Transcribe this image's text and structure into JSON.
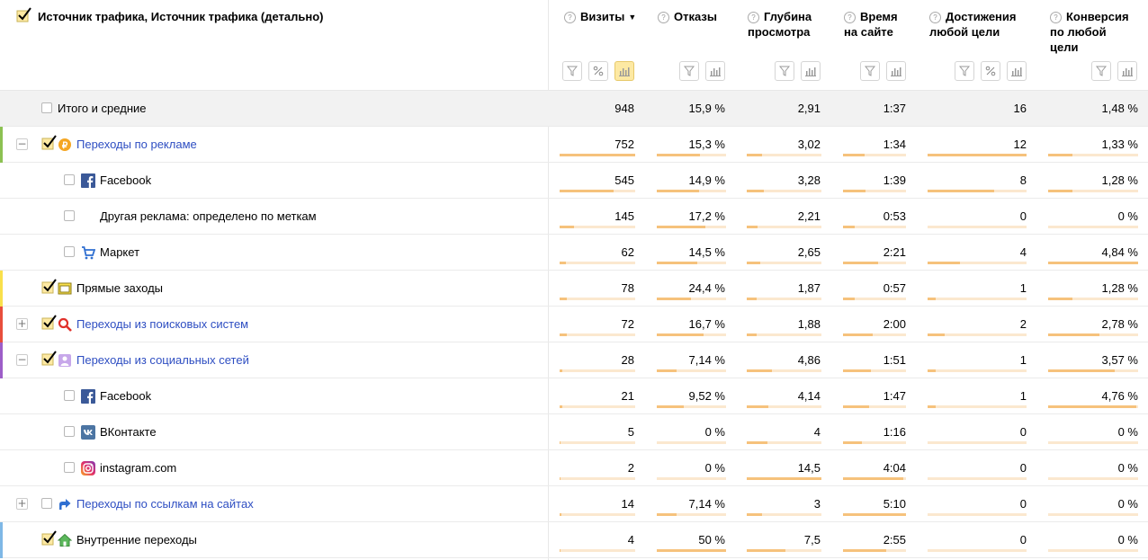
{
  "header": {
    "dimension_title": "Источник трафика, Источник трафика (детально)",
    "metrics": [
      {
        "id": "visits",
        "line1": "Визиты",
        "line2": "",
        "line3": "",
        "sorted": true,
        "buttons": [
          "filter",
          "percent",
          "chart-active"
        ]
      },
      {
        "id": "bounces",
        "line1": "Отказы",
        "line2": "",
        "line3": "",
        "sorted": false,
        "buttons": [
          "filter",
          "chart"
        ]
      },
      {
        "id": "depth",
        "line1": "Глубина",
        "line2": "просмотра",
        "line3": "",
        "sorted": false,
        "buttons": [
          "filter",
          "chart"
        ]
      },
      {
        "id": "time",
        "line1": "Время",
        "line2": "на сайте",
        "line3": "",
        "sorted": false,
        "buttons": [
          "filter",
          "chart"
        ]
      },
      {
        "id": "goals",
        "line1": "Достижения",
        "line2": "любой цели",
        "line3": "",
        "sorted": false,
        "buttons": [
          "filter",
          "percent",
          "chart"
        ]
      },
      {
        "id": "conv",
        "line1": "Конверсия",
        "line2": "по любой",
        "line3": "цели",
        "sorted": false,
        "buttons": [
          "filter",
          "chart"
        ]
      }
    ],
    "sort_arrow": "▼",
    "help_glyph": "?"
  },
  "colors": {
    "accent_yellow": "#fde9a3",
    "link": "#2e4ec2",
    "bar": "#f6c27c",
    "bar_bg": "#fbe8cf"
  },
  "rows": [
    {
      "label": "Итого и средние",
      "level": 0,
      "total": true,
      "checked": false,
      "toggle": "",
      "icon": "",
      "link": false,
      "accent": "",
      "values": [
        "948",
        "15,9 %",
        "2,91",
        "1:37",
        "16",
        "1,48 %"
      ],
      "bars": [
        null,
        null,
        null,
        null,
        null,
        null
      ]
    },
    {
      "label": "Переходы по рекламе",
      "level": 0,
      "checked": true,
      "toggle": "−",
      "icon": "ad-coin-icon",
      "link": true,
      "accent": "#8cc152",
      "values": [
        "752",
        "15,3 %",
        "3,02",
        "1:34",
        "12",
        "1,33 %"
      ],
      "bars": [
        1.0,
        0.62,
        0.21,
        0.34,
        1.0,
        0.27
      ]
    },
    {
      "label": "Facebook",
      "level": 1,
      "checked": false,
      "toggle": "",
      "icon": "facebook-icon",
      "link": false,
      "accent": "",
      "values": [
        "545",
        "14,9 %",
        "3,28",
        "1:39",
        "8",
        "1,28 %"
      ],
      "bars": [
        0.72,
        0.61,
        0.23,
        0.36,
        0.67,
        0.27
      ]
    },
    {
      "label": "Другая реклама: определено по меткам",
      "level": 1,
      "checked": false,
      "toggle": "",
      "icon": "",
      "link": false,
      "accent": "",
      "values": [
        "145",
        "17,2 %",
        "2,21",
        "0:53",
        "0",
        "0 %"
      ],
      "bars": [
        0.19,
        0.7,
        0.15,
        0.19,
        0,
        0
      ]
    },
    {
      "label": "Маркет",
      "level": 1,
      "checked": false,
      "toggle": "",
      "icon": "market-cart-icon",
      "link": false,
      "accent": "",
      "values": [
        "62",
        "14,5 %",
        "2,65",
        "2:21",
        "4",
        "4,84 %"
      ],
      "bars": [
        0.08,
        0.59,
        0.18,
        0.55,
        0.33,
        1.0
      ]
    },
    {
      "label": "Прямые заходы",
      "level": 0,
      "checked": true,
      "toggle": "",
      "icon": "direct-window-icon",
      "link": false,
      "accent": "#f9e04b",
      "values": [
        "78",
        "24,4 %",
        "1,87",
        "0:57",
        "1",
        "1,28 %"
      ],
      "bars": [
        0.1,
        0.49,
        0.13,
        0.19,
        0.08,
        0.27
      ]
    },
    {
      "label": "Переходы из поисковых систем",
      "level": 0,
      "checked": true,
      "toggle": "+",
      "icon": "search-magnifier-icon",
      "link": true,
      "accent": "#e84e3c",
      "values": [
        "72",
        "16,7 %",
        "1,88",
        "2:00",
        "2",
        "2,78 %"
      ],
      "bars": [
        0.1,
        0.68,
        0.13,
        0.47,
        0.17,
        0.57
      ]
    },
    {
      "label": "Переходы из социальных сетей",
      "level": 0,
      "checked": true,
      "toggle": "−",
      "icon": "social-person-icon",
      "link": true,
      "accent": "#9d5ec8",
      "values": [
        "28",
        "7,14 %",
        "4,86",
        "1:51",
        "1",
        "3,57 %"
      ],
      "bars": [
        0.04,
        0.29,
        0.34,
        0.44,
        0.08,
        0.74
      ]
    },
    {
      "label": "Facebook",
      "level": 1,
      "checked": false,
      "toggle": "",
      "icon": "facebook-icon",
      "link": false,
      "accent": "",
      "values": [
        "21",
        "9,52 %",
        "4,14",
        "1:47",
        "1",
        "4,76 %"
      ],
      "bars": [
        0.03,
        0.39,
        0.29,
        0.42,
        0.08,
        0.98
      ]
    },
    {
      "label": "ВКонтакте",
      "level": 1,
      "checked": false,
      "toggle": "",
      "icon": "vk-icon",
      "link": false,
      "accent": "",
      "values": [
        "5",
        "0 %",
        "4",
        "1:16",
        "0",
        "0 %"
      ],
      "bars": [
        0.01,
        0,
        0.28,
        0.3,
        0,
        0
      ]
    },
    {
      "label": "instagram.com",
      "level": 1,
      "checked": false,
      "toggle": "",
      "icon": "instagram-icon",
      "link": false,
      "accent": "",
      "values": [
        "2",
        "0 %",
        "14,5",
        "4:04",
        "0",
        "0 %"
      ],
      "bars": [
        0.01,
        0,
        1.0,
        0.96,
        0,
        0
      ]
    },
    {
      "label": "Переходы по ссылкам на сайтах",
      "level": 0,
      "checked": false,
      "toggle": "+",
      "icon": "link-arrow-icon",
      "link": true,
      "accent": "",
      "values": [
        "14",
        "7,14 %",
        "3",
        "5:10",
        "0",
        "0 %"
      ],
      "bars": [
        0.02,
        0.29,
        0.21,
        1.0,
        0,
        0
      ]
    },
    {
      "label": "Внутренние переходы",
      "level": 0,
      "checked": true,
      "toggle": "",
      "icon": "home-icon",
      "link": false,
      "accent": "#7fb8e6",
      "values": [
        "4",
        "50 %",
        "7,5",
        "2:55",
        "0",
        "0 %"
      ],
      "bars": [
        0.01,
        1.0,
        0.52,
        0.68,
        0,
        0
      ]
    }
  ]
}
